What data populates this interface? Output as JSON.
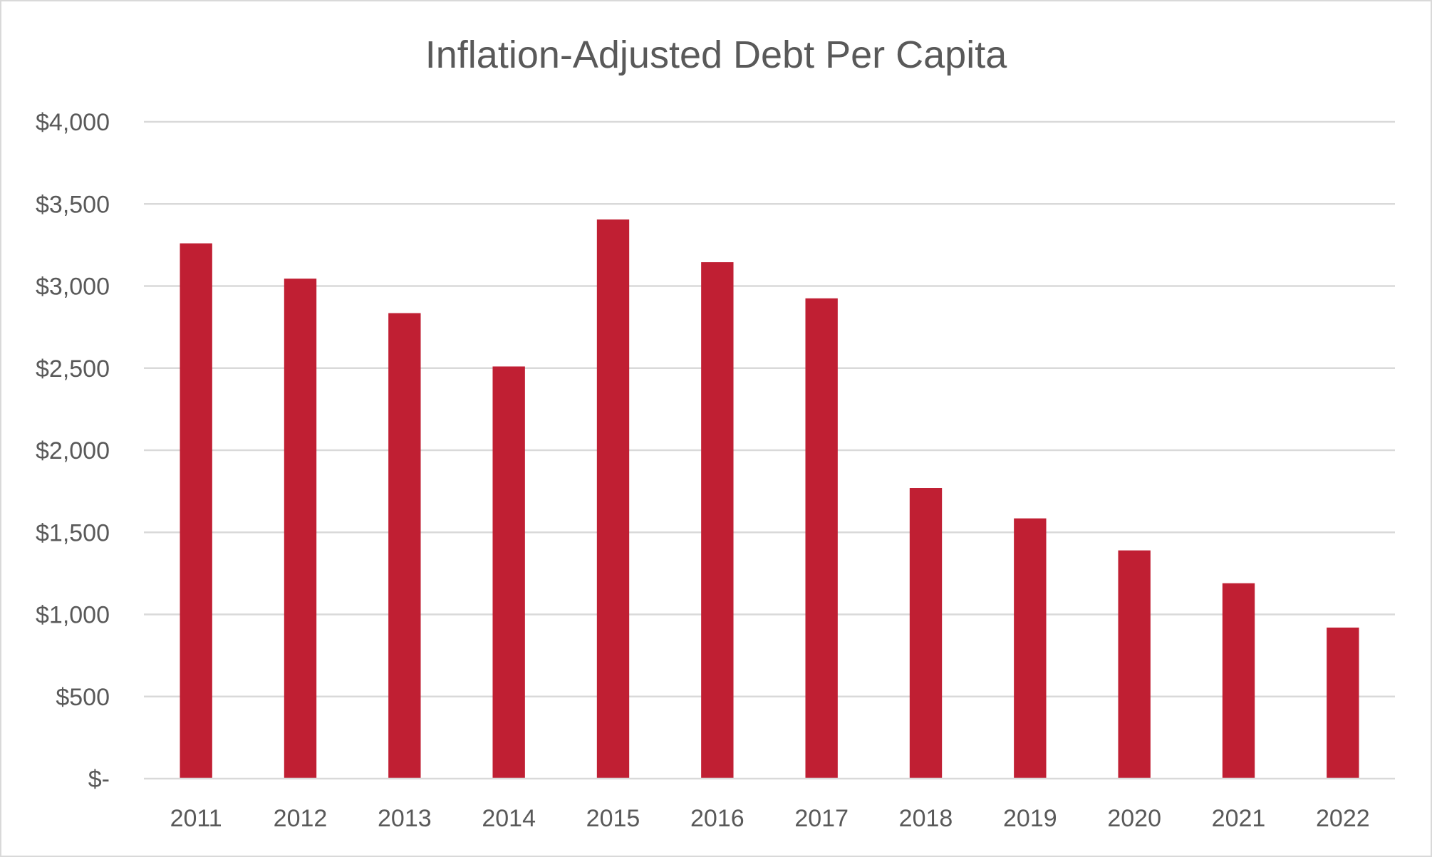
{
  "chart_data": {
    "type": "bar",
    "title": "Inflation-Adjusted Debt Per Capita",
    "xlabel": "",
    "ylabel": "",
    "categories": [
      "2011",
      "2012",
      "2013",
      "2014",
      "2015",
      "2016",
      "2017",
      "2018",
      "2019",
      "2020",
      "2021",
      "2022"
    ],
    "values": [
      3260,
      3045,
      2835,
      2510,
      3405,
      3145,
      2925,
      1770,
      1585,
      1390,
      1190,
      920
    ],
    "ylim": [
      0,
      4000
    ],
    "yticks": [
      {
        "value": 0,
        "label": "$-"
      },
      {
        "value": 500,
        "label": "$500"
      },
      {
        "value": 1000,
        "label": "$1,000"
      },
      {
        "value": 1500,
        "label": "$1,500"
      },
      {
        "value": 2000,
        "label": "$2,000"
      },
      {
        "value": 2500,
        "label": "$2,500"
      },
      {
        "value": 3000,
        "label": "$3,000"
      },
      {
        "value": 3500,
        "label": "$3,500"
      },
      {
        "value": 4000,
        "label": "$4,000"
      }
    ],
    "grid": true,
    "legend": "none",
    "bar_color": "#c01f33"
  }
}
